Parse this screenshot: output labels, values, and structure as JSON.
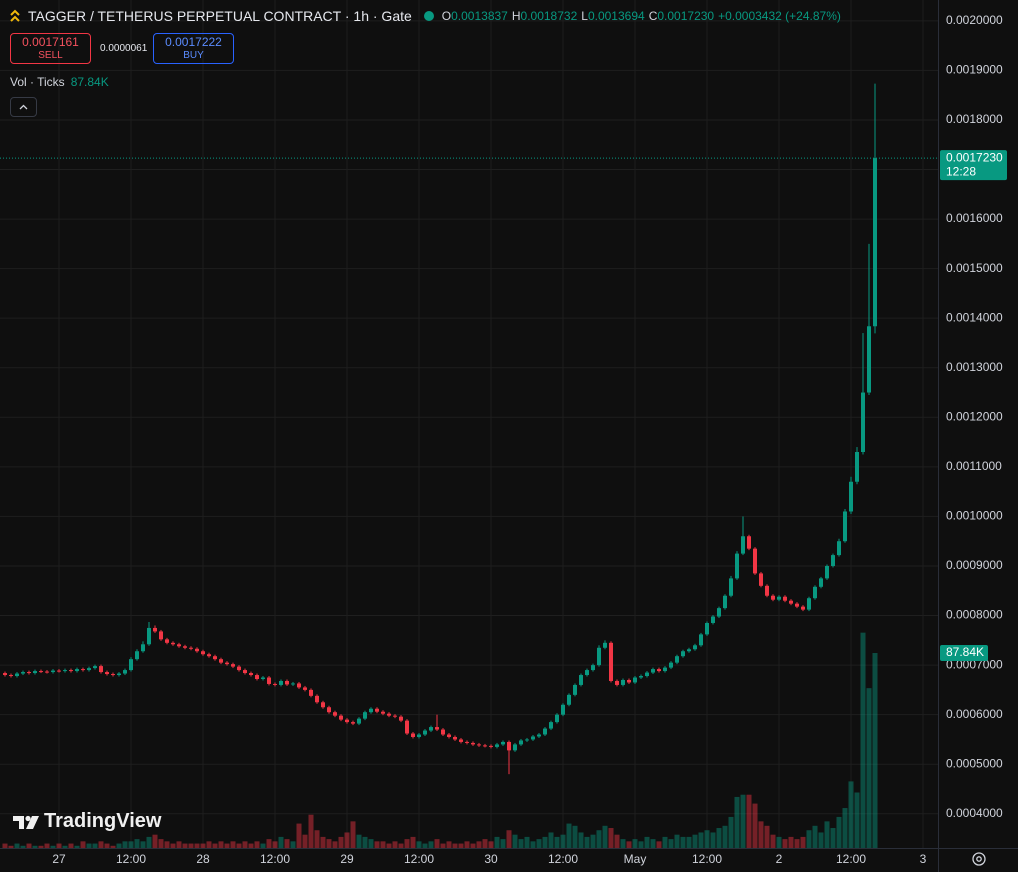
{
  "header": {
    "title": "TAGGER / TETHERUS PERPETUAL CONTRACT · 1h · Gate",
    "ohlc": [
      {
        "label": "O",
        "value": "0.0013837"
      },
      {
        "label": "H",
        "value": "0.0018732"
      },
      {
        "label": "L",
        "value": "0.0013694"
      },
      {
        "label": "C",
        "value": "0.0017230"
      }
    ],
    "change": "+0.0003432 (+24.87%)"
  },
  "trade": {
    "sell": {
      "price": "0.0017161",
      "label": "SELL"
    },
    "spread": "0.0000061",
    "buy": {
      "price": "0.0017222",
      "label": "BUY"
    }
  },
  "indicator": {
    "name": "Vol · Ticks",
    "value": "87.84K"
  },
  "watermark": "TradingView",
  "chart_data": {
    "type": "candlestick",
    "x": [
      -9,
      -8,
      -7,
      -6,
      -5,
      -4,
      -3,
      -2,
      -1,
      0,
      1,
      2,
      3,
      4,
      5,
      6,
      7,
      8,
      9,
      10,
      11,
      12,
      13,
      14,
      15,
      16,
      17,
      18,
      19,
      20,
      21,
      22,
      23,
      24,
      25,
      26,
      27,
      28,
      29,
      30,
      31,
      32,
      33,
      34,
      35,
      36,
      37,
      38,
      39,
      40,
      41,
      42,
      43,
      44,
      45,
      46,
      47,
      48,
      49,
      50,
      51,
      52,
      53,
      54,
      55,
      56,
      57,
      58,
      59,
      60,
      61,
      62,
      63,
      64,
      65,
      66,
      67,
      68,
      69,
      70,
      71,
      72,
      73,
      74,
      75,
      76,
      77,
      78,
      79,
      80,
      81,
      82,
      83,
      84,
      85,
      86,
      87,
      88,
      89,
      90,
      91,
      92,
      93,
      94,
      95,
      96,
      97,
      98,
      99,
      100,
      101,
      102,
      103,
      104,
      105,
      106,
      107,
      108,
      109,
      110,
      111,
      112,
      113,
      114,
      115,
      116,
      117,
      118,
      119,
      120,
      121,
      122,
      123,
      124,
      125,
      126,
      127,
      128,
      129,
      130,
      131,
      132,
      133,
      134,
      135,
      136
    ],
    "xlim": [
      -9.833,
      146.5
    ],
    "xticks": [
      {
        "value": 0,
        "label": "27"
      },
      {
        "value": 12,
        "label": "12:00"
      },
      {
        "value": 24,
        "label": "28"
      },
      {
        "value": 36,
        "label": "12:00"
      },
      {
        "value": 48,
        "label": "29"
      },
      {
        "value": 60,
        "label": "12:00"
      },
      {
        "value": 72,
        "label": "30"
      },
      {
        "value": 84,
        "label": "12:00"
      },
      {
        "value": 96,
        "label": "May"
      },
      {
        "value": 108,
        "label": "12:00"
      },
      {
        "value": 120,
        "label": "2"
      },
      {
        "value": 132,
        "label": "12:00"
      },
      {
        "value": 144,
        "label": "3"
      }
    ],
    "ylim": [
      0.000331,
      0.002042
    ],
    "yticks": [
      {
        "value": 0.0004,
        "label": "0.0004000"
      },
      {
        "value": 0.0005,
        "label": "0.0005000"
      },
      {
        "value": 0.0006,
        "label": "0.0006000"
      },
      {
        "value": 0.0007,
        "label": "0.0007000"
      },
      {
        "value": 0.0008,
        "label": "0.0008000"
      },
      {
        "value": 0.0009,
        "label": "0.0009000"
      },
      {
        "value": 0.001,
        "label": "0.0010000"
      },
      {
        "value": 0.0011,
        "label": "0.0011000"
      },
      {
        "value": 0.0012,
        "label": "0.0012000"
      },
      {
        "value": 0.0013,
        "label": "0.0013000"
      },
      {
        "value": 0.0014,
        "label": "0.0014000"
      },
      {
        "value": 0.0015,
        "label": "0.0015000"
      },
      {
        "value": 0.0016,
        "label": "0.0016000"
      },
      {
        "value": 0.0017,
        "label": "0.0017000"
      },
      {
        "value": 0.0018,
        "label": "0.0018000"
      },
      {
        "value": 0.0019,
        "label": "0.0019000"
      },
      {
        "value": 0.002,
        "label": "0.0020000"
      }
    ],
    "open": [
      0.000684,
      0.00068,
      0.000678,
      0.000683,
      0.000686,
      0.000684,
      0.000688,
      0.000687,
      0.000686,
      0.000689,
      0.000688,
      0.00069,
      0.000688,
      0.000692,
      0.00069,
      0.000694,
      0.000698,
      0.000686,
      0.000682,
      0.00068,
      0.000683,
      0.00069,
      0.000712,
      0.000728,
      0.000742,
      0.000775,
      0.000768,
      0.000752,
      0.000745,
      0.000742,
      0.000738,
      0.000735,
      0.000733,
      0.000728,
      0.000722,
      0.000718,
      0.000712,
      0.000705,
      0.000702,
      0.000697,
      0.00069,
      0.000684,
      0.00068,
      0.000672,
      0.000675,
      0.000662,
      0.00066,
      0.000668,
      0.000661,
      0.000663,
      0.000655,
      0.00065,
      0.000638,
      0.000625,
      0.000615,
      0.000605,
      0.000598,
      0.00059,
      0.000585,
      0.000582,
      0.000592,
      0.000605,
      0.000612,
      0.000606,
      0.000602,
      0.000598,
      0.000596,
      0.000588,
      0.000562,
      0.000555,
      0.00056,
      0.000568,
      0.000575,
      0.00057,
      0.00056,
      0.000555,
      0.00055,
      0.000545,
      0.000543,
      0.00054,
      0.000538,
      0.000537,
      0.000535,
      0.00054,
      0.000545,
      0.000528,
      0.00054,
      0.000548,
      0.00055,
      0.000556,
      0.00056,
      0.000572,
      0.000585,
      0.0006,
      0.00062,
      0.00064,
      0.00066,
      0.00068,
      0.00069,
      0.0007,
      0.000735,
      0.000745,
      0.000668,
      0.00066,
      0.00067,
      0.000665,
      0.000675,
      0.000678,
      0.000685,
      0.000692,
      0.000688,
      0.000695,
      0.000705,
      0.000718,
      0.000728,
      0.000732,
      0.00074,
      0.000762,
      0.000785,
      0.000798,
      0.000815,
      0.00084,
      0.000875,
      0.000925,
      0.00096,
      0.000935,
      0.000885,
      0.00086,
      0.00084,
      0.000832,
      0.000838,
      0.00083,
      0.000824,
      0.000818,
      0.000812,
      0.000835,
      0.000858,
      0.000875,
      0.0009,
      0.000922,
      0.00095,
      0.00101,
      0.00107,
      0.00113,
      0.00125,
      0.0013837
    ],
    "high": [
      0.000687,
      0.000683,
      0.000686,
      0.000689,
      0.000689,
      0.000691,
      0.000691,
      0.00069,
      0.000692,
      0.000692,
      0.000693,
      0.000693,
      0.000695,
      0.000695,
      0.000697,
      0.000701,
      0.000701,
      0.000689,
      0.000685,
      0.000686,
      0.000693,
      0.000716,
      0.000732,
      0.000748,
      0.000787,
      0.00078,
      0.000771,
      0.000755,
      0.000748,
      0.000745,
      0.000741,
      0.000738,
      0.000736,
      0.000731,
      0.000725,
      0.000721,
      0.000715,
      0.000708,
      0.000705,
      0.0007,
      0.000693,
      0.000687,
      0.000683,
      0.000678,
      0.000678,
      0.000665,
      0.000671,
      0.000671,
      0.000666,
      0.000666,
      0.000658,
      0.000653,
      0.000641,
      0.000628,
      0.000618,
      0.000608,
      0.000601,
      0.000593,
      0.000588,
      0.000595,
      0.000608,
      0.000615,
      0.000615,
      0.000609,
      0.000605,
      0.000601,
      0.000599,
      0.000591,
      0.000565,
      0.000563,
      0.000571,
      0.000578,
      0.0006,
      0.000573,
      0.000563,
      0.000558,
      0.000553,
      0.000548,
      0.000546,
      0.000543,
      0.000541,
      0.00054,
      0.000543,
      0.000548,
      0.000548,
      0.000543,
      0.000551,
      0.000553,
      0.000559,
      0.000563,
      0.000575,
      0.000588,
      0.000603,
      0.000623,
      0.000643,
      0.000663,
      0.000683,
      0.000693,
      0.000703,
      0.00074,
      0.00075,
      0.000748,
      0.000671,
      0.000673,
      0.000673,
      0.000678,
      0.000681,
      0.000688,
      0.000695,
      0.000695,
      0.000698,
      0.000708,
      0.000721,
      0.000731,
      0.000735,
      0.000743,
      0.000765,
      0.000788,
      0.000801,
      0.000818,
      0.000843,
      0.00088,
      0.00093,
      0.001,
      0.000963,
      0.000938,
      0.000888,
      0.000863,
      0.000843,
      0.000841,
      0.000841,
      0.000833,
      0.000827,
      0.000821,
      0.000838,
      0.000861,
      0.000878,
      0.000903,
      0.000925,
      0.000955,
      0.001015,
      0.00108,
      0.00114,
      0.00137,
      0.00155,
      0.0018732
    ],
    "low": [
      0.000677,
      0.000675,
      0.000675,
      0.00068,
      0.000681,
      0.000681,
      0.000684,
      0.000683,
      0.000683,
      0.000685,
      0.000685,
      0.000685,
      0.000685,
      0.000687,
      0.000687,
      0.000691,
      0.000683,
      0.000679,
      0.000677,
      0.000677,
      0.00068,
      0.000687,
      0.000709,
      0.000725,
      0.000739,
      0.000765,
      0.000749,
      0.000742,
      0.000739,
      0.000735,
      0.000732,
      0.00073,
      0.000725,
      0.000719,
      0.000715,
      0.000709,
      0.000702,
      0.000699,
      0.000694,
      0.000687,
      0.000681,
      0.000677,
      0.000669,
      0.000669,
      0.000659,
      0.000657,
      0.000657,
      0.000658,
      0.000658,
      0.000652,
      0.000647,
      0.000635,
      0.000622,
      0.000612,
      0.000602,
      0.000595,
      0.000587,
      0.000582,
      0.000579,
      0.000579,
      0.000589,
      0.000602,
      0.000603,
      0.000599,
      0.000595,
      0.000593,
      0.000585,
      0.000559,
      0.000552,
      0.000552,
      0.000557,
      0.000565,
      0.000567,
      0.000557,
      0.000552,
      0.000547,
      0.000542,
      0.00054,
      0.000537,
      0.000535,
      0.000534,
      0.000532,
      0.000532,
      0.000537,
      0.00048,
      0.000525,
      0.000537,
      0.000545,
      0.000547,
      0.000553,
      0.000557,
      0.000569,
      0.000582,
      0.000597,
      0.000617,
      0.000637,
      0.000657,
      0.000677,
      0.000687,
      0.000697,
      0.000732,
      0.000665,
      0.000657,
      0.000657,
      0.000662,
      0.000662,
      0.000672,
      0.000675,
      0.000682,
      0.000685,
      0.000685,
      0.000692,
      0.000702,
      0.000715,
      0.000725,
      0.000729,
      0.000737,
      0.000759,
      0.000782,
      0.000795,
      0.000812,
      0.000837,
      0.000872,
      0.000922,
      0.000932,
      0.000882,
      0.000857,
      0.000837,
      0.000829,
      0.000829,
      0.000827,
      0.000821,
      0.000815,
      0.000809,
      0.000809,
      0.000832,
      0.000855,
      0.000872,
      0.000897,
      0.000919,
      0.000947,
      0.001005,
      0.001065,
      0.001125,
      0.001245,
      0.0013694
    ],
    "close": [
      0.00068,
      0.000678,
      0.000683,
      0.000686,
      0.000684,
      0.000688,
      0.000687,
      0.000686,
      0.000689,
      0.000688,
      0.00069,
      0.000688,
      0.000692,
      0.00069,
      0.000694,
      0.000698,
      0.000686,
      0.000682,
      0.00068,
      0.000683,
      0.00069,
      0.000712,
      0.000728,
      0.000742,
      0.000775,
      0.000768,
      0.000752,
      0.000745,
      0.000742,
      0.000738,
      0.000735,
      0.000733,
      0.000728,
      0.000722,
      0.000718,
      0.000712,
      0.000705,
      0.000702,
      0.000697,
      0.00069,
      0.000684,
      0.00068,
      0.000672,
      0.000675,
      0.000662,
      0.00066,
      0.000668,
      0.000661,
      0.000663,
      0.000655,
      0.00065,
      0.000638,
      0.000625,
      0.000615,
      0.000605,
      0.000598,
      0.00059,
      0.000585,
      0.000582,
      0.000592,
      0.000605,
      0.000612,
      0.000606,
      0.000602,
      0.000598,
      0.000596,
      0.000588,
      0.000562,
      0.000555,
      0.00056,
      0.000568,
      0.000575,
      0.00057,
      0.00056,
      0.000555,
      0.00055,
      0.000545,
      0.000543,
      0.00054,
      0.000538,
      0.000537,
      0.000535,
      0.00054,
      0.000545,
      0.000528,
      0.00054,
      0.000548,
      0.00055,
      0.000556,
      0.00056,
      0.000572,
      0.000585,
      0.0006,
      0.00062,
      0.00064,
      0.00066,
      0.00068,
      0.00069,
      0.0007,
      0.000735,
      0.000745,
      0.000668,
      0.00066,
      0.00067,
      0.000665,
      0.000675,
      0.000678,
      0.000685,
      0.000692,
      0.000688,
      0.000695,
      0.000705,
      0.000718,
      0.000728,
      0.000732,
      0.00074,
      0.000762,
      0.000785,
      0.000798,
      0.000815,
      0.00084,
      0.000875,
      0.000925,
      0.00096,
      0.000935,
      0.000885,
      0.00086,
      0.00084,
      0.000832,
      0.000838,
      0.00083,
      0.000824,
      0.000818,
      0.000812,
      0.000835,
      0.000858,
      0.000875,
      0.0009,
      0.000922,
      0.00095,
      0.00101,
      0.00107,
      0.00113,
      0.00125,
      0.0013837,
      0.001723
    ],
    "volume": [
      2000,
      1000,
      2000,
      1000,
      2000,
      1000,
      1000,
      2000,
      1000,
      2000,
      1000,
      2000,
      1000,
      3000,
      2000,
      2000,
      3000,
      2000,
      1000,
      2000,
      3000,
      3000,
      4000,
      3000,
      5000,
      6000,
      4000,
      3000,
      2000,
      3000,
      2000,
      2000,
      2000,
      2000,
      3000,
      2000,
      3000,
      2000,
      3000,
      2000,
      3000,
      2000,
      3000,
      2000,
      4000,
      3000,
      5000,
      4000,
      3000,
      11000,
      6000,
      15000,
      8000,
      5000,
      4000,
      3000,
      5000,
      7000,
      12000,
      6000,
      5000,
      4000,
      3000,
      3000,
      2000,
      3000,
      2000,
      4000,
      5000,
      3000,
      2000,
      3000,
      4000,
      2000,
      3000,
      2000,
      2000,
      3000,
      2000,
      3000,
      4000,
      3000,
      5000,
      4000,
      8000,
      6000,
      4000,
      5000,
      3000,
      4000,
      5000,
      7000,
      5000,
      6000,
      11000,
      10000,
      7000,
      5000,
      6000,
      8000,
      10000,
      9000,
      6000,
      4000,
      3000,
      4000,
      3000,
      5000,
      4000,
      3000,
      5000,
      4000,
      6000,
      5000,
      5000,
      6000,
      7000,
      8000,
      7000,
      9000,
      10000,
      14000,
      23000,
      24000,
      24000,
      20000,
      12000,
      10000,
      6000,
      5000,
      4000,
      5000,
      4000,
      5000,
      8000,
      10000,
      7000,
      12000,
      9000,
      14000,
      18000,
      30000,
      25000,
      97000,
      72000,
      87840
    ],
    "volume_lim": [
      0,
      100000
    ],
    "up_color": "#089981",
    "down_color": "#f23645",
    "volume_opacity": 0.45,
    "grid": true,
    "last_price": {
      "value": 0.001723,
      "label": "0.0017230",
      "countdown": "12:28"
    },
    "last_volume": {
      "value": 87840,
      "label": "87.84K"
    }
  }
}
